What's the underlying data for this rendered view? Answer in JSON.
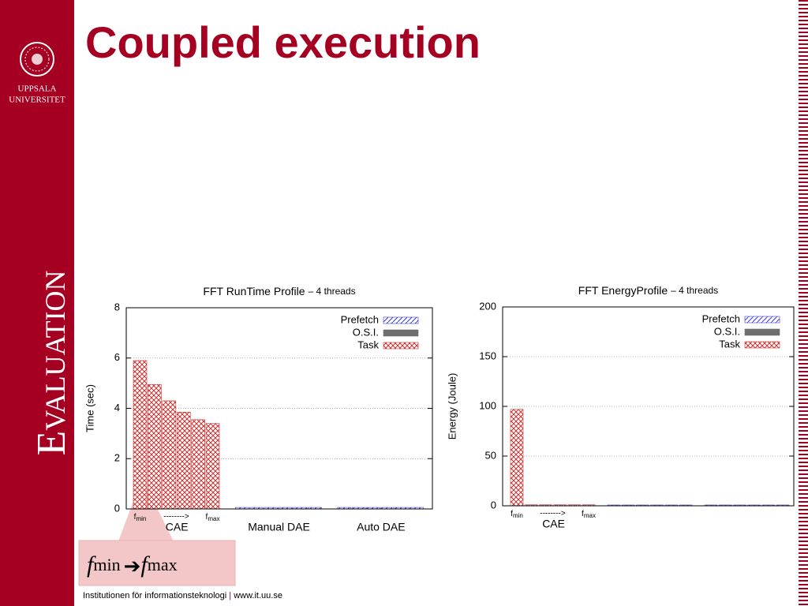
{
  "sidebar": {
    "logo_lines": [
      "UPPSALA",
      "UNIVERSITET"
    ],
    "section": "Evaluation"
  },
  "title": "Coupled execution",
  "callout": {
    "from": {
      "base": "f",
      "sub": "min"
    },
    "to": {
      "base": "f",
      "sub": "max"
    }
  },
  "footer": {
    "text": "Institutionen för informationsteknologi",
    "separator": "|",
    "url": "www.it.uu.se"
  },
  "chart_data": [
    {
      "type": "bar",
      "title": "FFT RunTime Profile",
      "subtitle": "– 4 threads",
      "y_label": "Time (sec)",
      "groups": [
        "CAE",
        "Manual DAE",
        "Auto DAE"
      ],
      "annotations": [
        {
          "base": "f",
          "sub": "min"
        },
        "-------->",
        {
          "base": "f",
          "sub": "max"
        }
      ],
      "ylim": [
        0,
        8
      ],
      "yticks": [
        0,
        2,
        4,
        6,
        8
      ],
      "grid": true,
      "legend": "upper right",
      "series": [
        {
          "name": "Prefetch",
          "color": "#3a3ac8",
          "pattern": "hatch",
          "values": [
            0,
            0,
            0,
            0,
            0,
            0,
            0.06,
            0.06,
            0.06,
            0.06,
            0.06,
            0.06,
            0.06,
            0.06,
            0.06,
            0.06,
            0.06,
            0.06
          ]
        },
        {
          "name": "O.S.I.",
          "color": "#6e6e6e",
          "pattern": "solid",
          "values": [
            0,
            0,
            0,
            0,
            0,
            0,
            0,
            0,
            0,
            0,
            0,
            0,
            0,
            0,
            0,
            0,
            0,
            0
          ]
        },
        {
          "name": "Task",
          "color": "#c83232",
          "pattern": "crosshatch",
          "values": [
            5.9,
            4.95,
            4.3,
            3.85,
            3.55,
            3.4,
            0,
            0,
            0,
            0,
            0,
            0,
            0,
            0,
            0,
            0,
            0,
            0
          ]
        }
      ]
    },
    {
      "type": "bar",
      "title": "FFT EnergyProfile",
      "subtitle": "– 4 threads",
      "y_label": "Energy (Joule)",
      "groups": [
        "CAE",
        null,
        null
      ],
      "annotations": [
        {
          "base": "f",
          "sub": "min"
        },
        "-------->",
        {
          "base": "f",
          "sub": "max"
        }
      ],
      "ylim": [
        0,
        200
      ],
      "yticks": [
        0,
        50,
        100,
        150,
        200
      ],
      "grid": true,
      "legend": "upper right",
      "series": [
        {
          "name": "Prefetch",
          "color": "#3a3ac8",
          "pattern": "hatch",
          "values": [
            0,
            0,
            0,
            0,
            0,
            0,
            0.8,
            0.8,
            0.8,
            0.8,
            0.8,
            0.8,
            0.8,
            0.8,
            0.8,
            0.8,
            0.8,
            0.8
          ]
        },
        {
          "name": "O.S.I.",
          "color": "#6e6e6e",
          "pattern": "solid",
          "values": [
            0,
            0,
            0,
            0,
            0,
            0,
            0,
            0,
            0,
            0,
            0,
            0,
            0,
            0,
            0,
            0,
            0,
            0
          ]
        },
        {
          "name": "Task",
          "color": "#c83232",
          "pattern": "crosshatch",
          "values": [
            97,
            1,
            1,
            1,
            1,
            1,
            0,
            0,
            0,
            0,
            0,
            0,
            0,
            0,
            0,
            0,
            0,
            0
          ]
        }
      ]
    }
  ]
}
